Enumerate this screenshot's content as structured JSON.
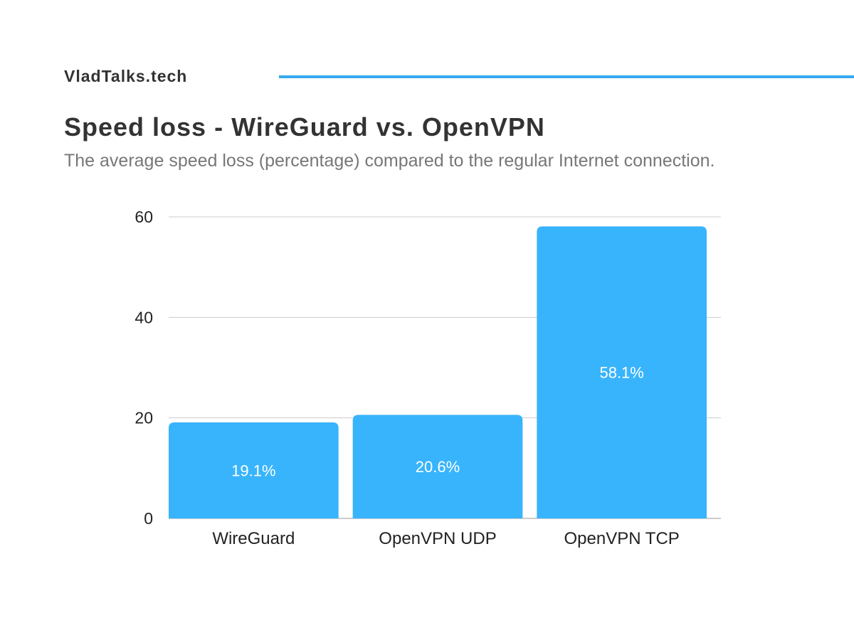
{
  "header": {
    "brand": "VladTalks.tech",
    "title": "Speed loss - WireGuard vs. OpenVPN",
    "subtitle": "The average speed loss (percentage) compared to the regular Internet connection."
  },
  "colors": {
    "accent": "#35A8F0",
    "bar": "#38B4FC",
    "grid": "#CCCCCC",
    "text": "#333333"
  },
  "chart_data": {
    "type": "bar",
    "categories": [
      "WireGuard",
      "OpenVPN UDP",
      "OpenVPN TCP"
    ],
    "values": [
      19.1,
      20.6,
      58.1
    ],
    "data_labels": [
      "19.1%",
      "20.6%",
      "58.1%"
    ],
    "title": "Speed loss - WireGuard vs. OpenVPN",
    "subtitle": "The average speed loss (percentage) compared to the regular Internet connection.",
    "ylim": [
      0,
      60
    ],
    "yticks": [
      0,
      20,
      40,
      60
    ],
    "grid": true,
    "legend": "none"
  }
}
